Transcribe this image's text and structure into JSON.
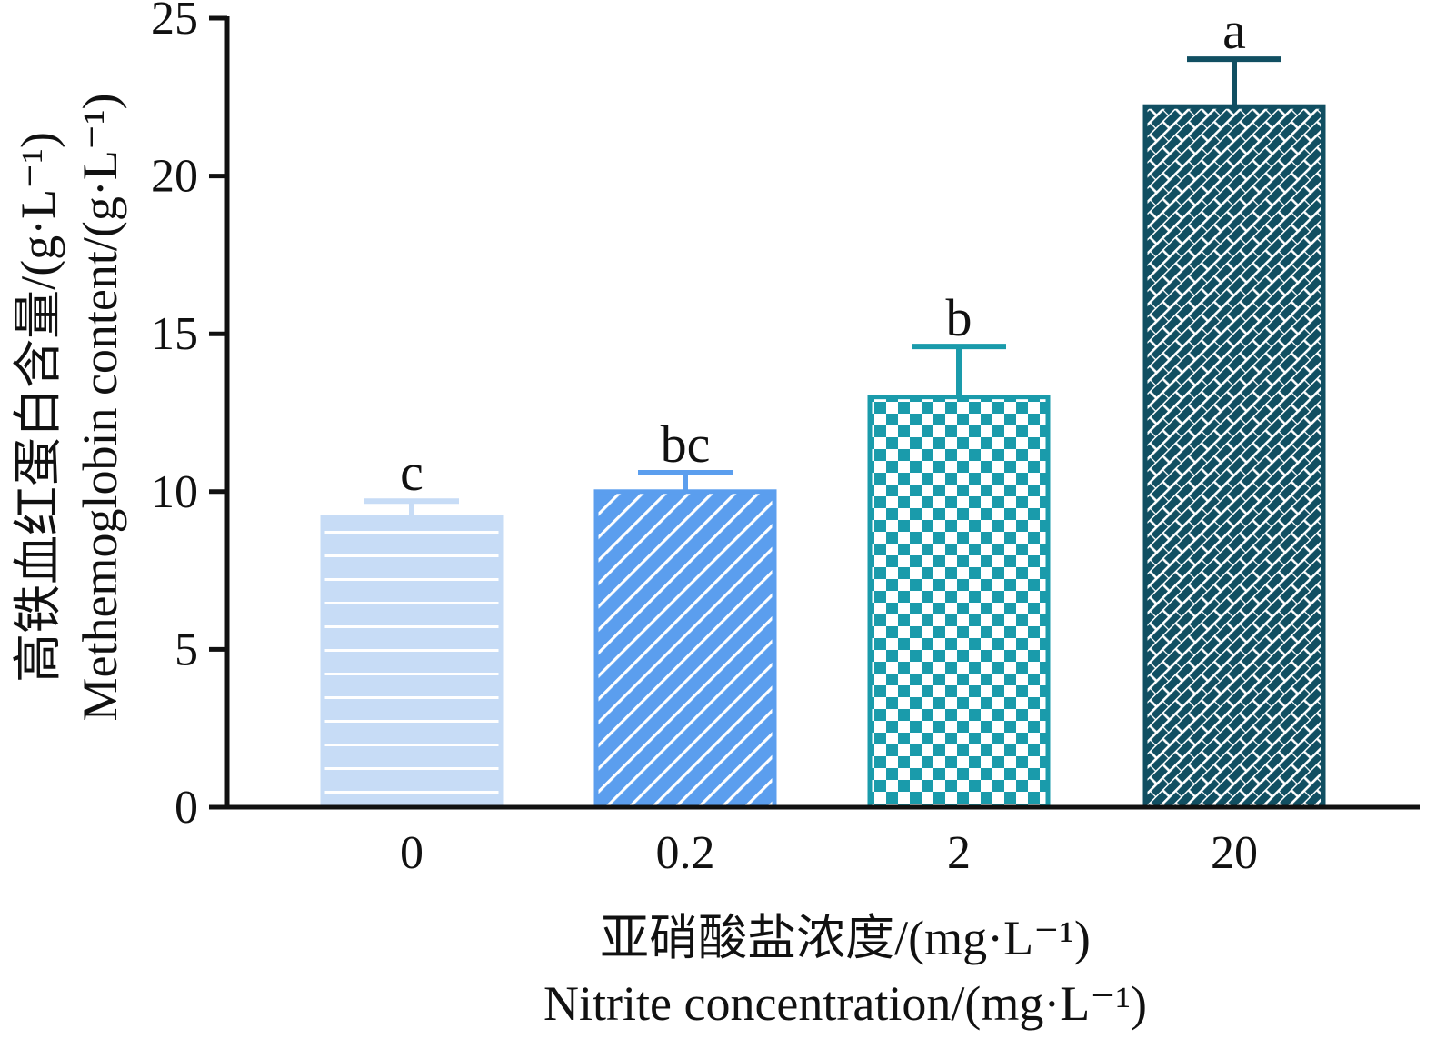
{
  "chart_data": {
    "type": "bar",
    "categories": [
      "0",
      "0.2",
      "2",
      "20"
    ],
    "values": [
      9.2,
      10.0,
      13.0,
      22.2
    ],
    "errors": [
      0.5,
      0.6,
      1.6,
      1.5
    ],
    "significance": [
      "c",
      "bc",
      "b",
      "a"
    ],
    "colors": [
      "#c7dcf6",
      "#5b9eee",
      "#1a9bab",
      "#114f62"
    ],
    "patterns": [
      "horizontal-lines",
      "diagonal-lines",
      "checkerboard",
      "brick"
    ],
    "ylim": [
      0,
      25
    ],
    "yticks": [
      "0",
      "5",
      "10",
      "15",
      "20",
      "25"
    ],
    "ylabel_cn": "高铁血红蛋白含量/(g·L⁻¹)",
    "ylabel_en": "Methemoglobin content/(g·L⁻¹)",
    "xlabel_cn": "亚硝酸盐浓度/(mg·L⁻¹)",
    "xlabel_en": "Nitrite concentration/(mg·L⁻¹)",
    "grid": false,
    "legend": "none"
  }
}
